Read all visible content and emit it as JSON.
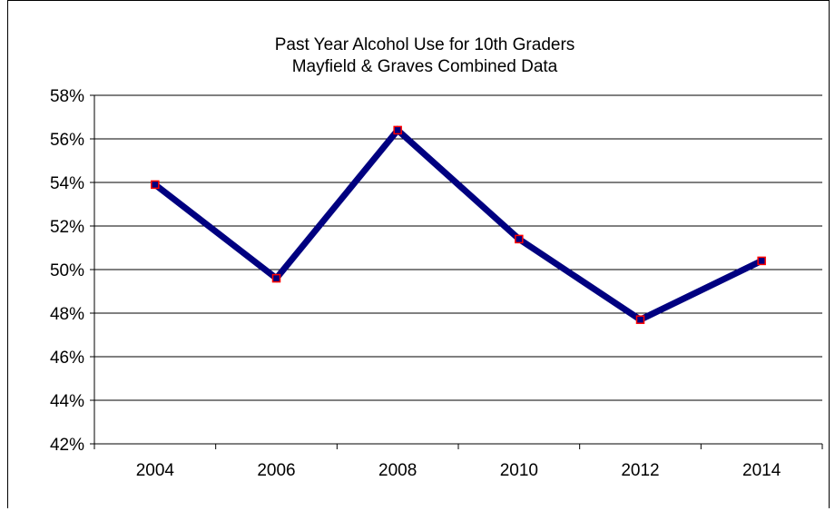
{
  "chart_data": {
    "type": "line",
    "title": "Past Year Alcohol Use for 10th Graders",
    "subtitle": "Mayfield & Graves Combined Data",
    "xlabel": "",
    "ylabel": "",
    "x": [
      "2004",
      "2006",
      "2008",
      "2010",
      "2012",
      "2014"
    ],
    "series": [
      {
        "values": [
          53.9,
          49.6,
          56.4,
          51.4,
          47.7,
          50.4
        ],
        "line_color": "#000080",
        "marker_color": "#ff0000"
      }
    ],
    "y_ticks": [
      "42%",
      "44%",
      "46%",
      "48%",
      "50%",
      "52%",
      "54%",
      "56%",
      "58%"
    ],
    "ylim": [
      42,
      58
    ],
    "y_unit": "%",
    "grid": "horizontal",
    "legend": "none"
  }
}
